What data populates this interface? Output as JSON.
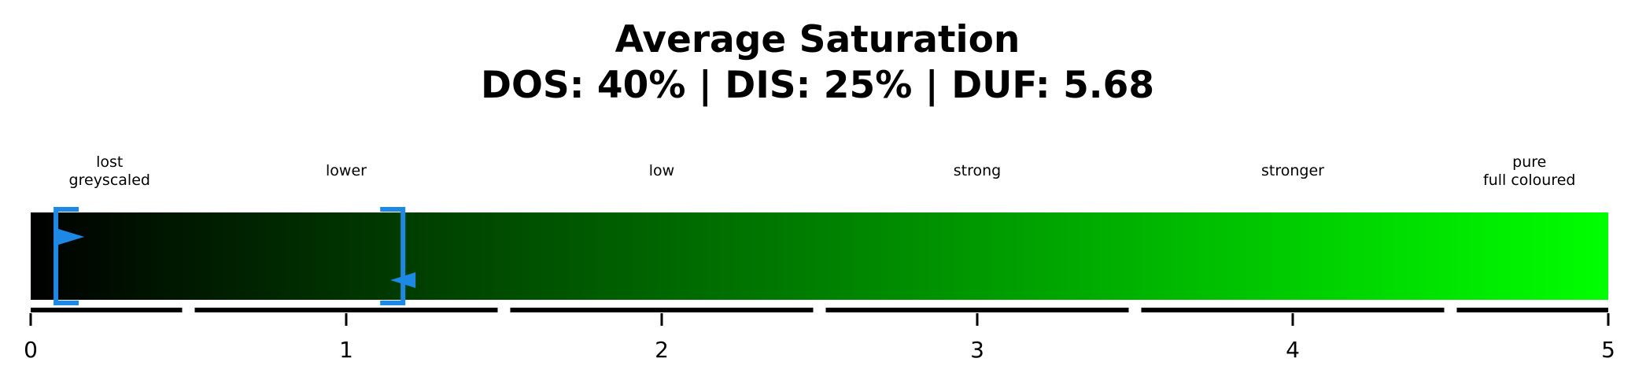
{
  "chart_data": {
    "type": "gauge",
    "title": "Average Saturation",
    "subtitle": "DOS: 40% | DIS: 25% | DUF: 5.68",
    "xlim": [
      0,
      5
    ],
    "ticks": [
      0,
      1,
      2,
      3,
      4,
      5
    ],
    "tick_labels": [
      "0",
      "1",
      "2",
      "3",
      "4",
      "5"
    ],
    "categories": [
      {
        "lines": [
          "lost",
          "greyscaled"
        ],
        "start": 0,
        "end": 0.5
      },
      {
        "lines": [
          "lower"
        ],
        "start": 0.5,
        "end": 1.5
      },
      {
        "lines": [
          "low"
        ],
        "start": 1.5,
        "end": 2.5
      },
      {
        "lines": [
          "strong"
        ],
        "start": 2.5,
        "end": 3.5
      },
      {
        "lines": [
          "stronger"
        ],
        "start": 3.5,
        "end": 4.5
      },
      {
        "lines": [
          "pure",
          "full coloured"
        ],
        "start": 4.5,
        "end": 5
      }
    ],
    "gradient": {
      "start_color": "#000000",
      "end_color": "#00ff00"
    },
    "range": {
      "low": 0.08,
      "high": 1.18
    },
    "markers": [
      0.08,
      1.18
    ],
    "accent_color": "#1e88e5"
  }
}
